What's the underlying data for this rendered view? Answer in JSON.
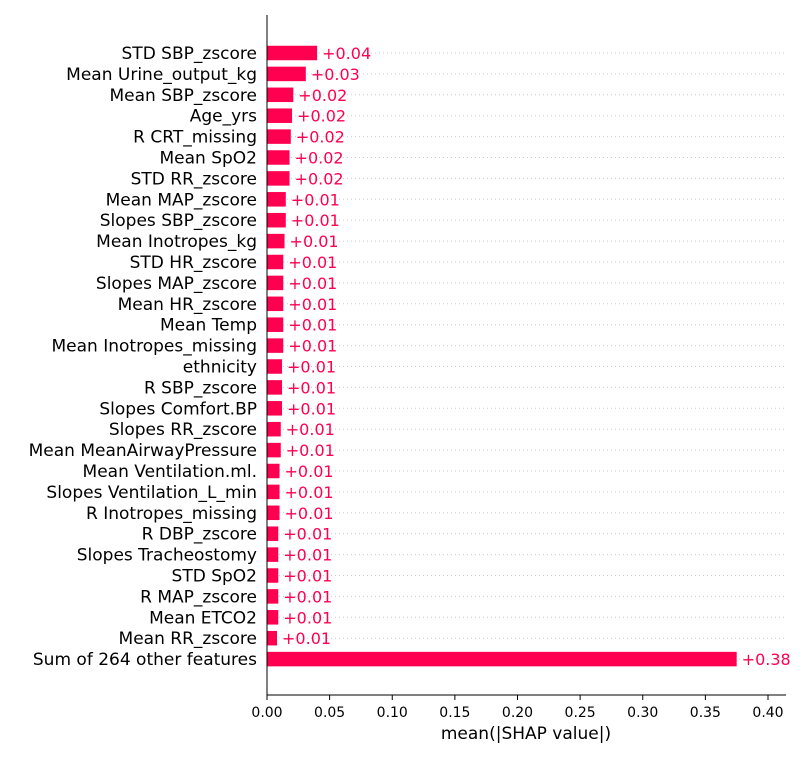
{
  "chart_data": {
    "type": "bar",
    "orientation": "horizontal",
    "xlabel": "mean(|SHAP value|)",
    "xlim": [
      0.0,
      0.413
    ],
    "xticks": [
      0.0,
      0.05,
      0.1,
      0.15,
      0.2,
      0.25,
      0.3,
      0.35,
      0.4
    ],
    "xtick_labels": [
      "0.00",
      "0.05",
      "0.10",
      "0.15",
      "0.20",
      "0.25",
      "0.30",
      "0.35",
      "0.40"
    ],
    "grid": "dotted horizontal guides",
    "bar_color": "#ff0051",
    "categories": [
      "STD SBP_zscore",
      "Mean Urine_output_kg",
      "Mean SBP_zscore",
      "Age_yrs",
      "R CRT_missing",
      "Mean SpO2",
      "STD RR_zscore",
      "Mean MAP_zscore",
      "Slopes SBP_zscore",
      "Mean Inotropes_kg",
      "STD HR_zscore",
      "Slopes MAP_zscore",
      "Mean HR_zscore",
      "Mean Temp",
      "Mean Inotropes_missing",
      "ethnicity",
      "R SBP_zscore",
      "Slopes Comfort.BP",
      "Slopes RR_zscore",
      "Mean MeanAirwayPressure",
      "Mean Ventilation.ml.",
      "Slopes Ventilation_L_min",
      "R Inotropes_missing",
      "R DBP_zscore",
      "Slopes Tracheostomy",
      "STD SpO2",
      "R MAP_zscore",
      "Mean ETCO2",
      "Mean RR_zscore",
      "Sum of 264 other features"
    ],
    "values": [
      0.04,
      0.031,
      0.021,
      0.02,
      0.019,
      0.018,
      0.018,
      0.015,
      0.015,
      0.014,
      0.013,
      0.013,
      0.013,
      0.013,
      0.013,
      0.012,
      0.012,
      0.012,
      0.011,
      0.011,
      0.01,
      0.01,
      0.01,
      0.009,
      0.009,
      0.009,
      0.009,
      0.009,
      0.008,
      0.375
    ],
    "value_labels": [
      "+0.04",
      "+0.03",
      "+0.02",
      "+0.02",
      "+0.02",
      "+0.02",
      "+0.02",
      "+0.01",
      "+0.01",
      "+0.01",
      "+0.01",
      "+0.01",
      "+0.01",
      "+0.01",
      "+0.01",
      "+0.01",
      "+0.01",
      "+0.01",
      "+0.01",
      "+0.01",
      "+0.01",
      "+0.01",
      "+0.01",
      "+0.01",
      "+0.01",
      "+0.01",
      "+0.01",
      "+0.01",
      "+0.01",
      "+0.38"
    ]
  }
}
